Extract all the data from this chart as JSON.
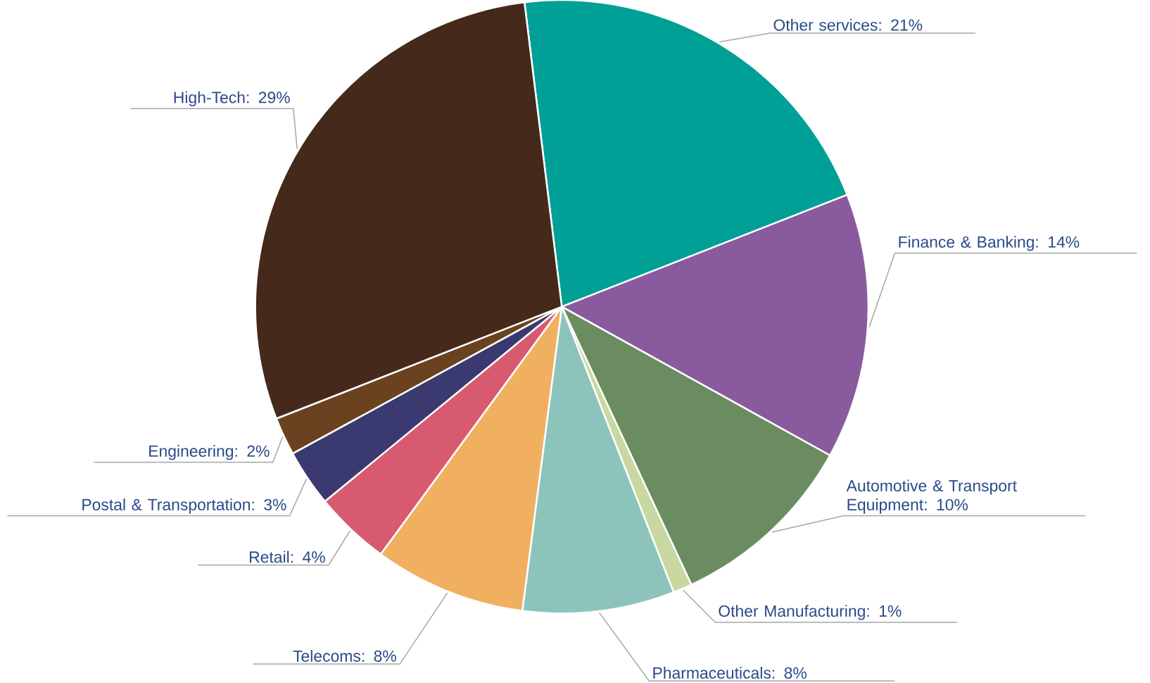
{
  "chart_data": {
    "type": "pie",
    "categories": [
      "Other services: 21%",
      "Finance & Banking: 14%",
      "Automotive & Transport Equipment: 10%",
      "Other Manufacturing: 1%",
      "Pharmaceuticals: 8%",
      "Telecoms: 8%",
      "Retail: 4%",
      "Postal & Transportation: 3%",
      "Engineering: 2%",
      "High-Tech: 29%"
    ],
    "values": [
      21,
      14,
      10,
      1,
      8,
      8,
      4,
      3,
      2,
      29
    ],
    "colors": [
      "#00a096",
      "#8a5a9e",
      "#6a8c60",
      "#c8d8a0",
      "#8cc4bc",
      "#f0b060",
      "#d85a70",
      "#3a3a70",
      "#6b4220",
      "#45291a"
    ]
  }
}
